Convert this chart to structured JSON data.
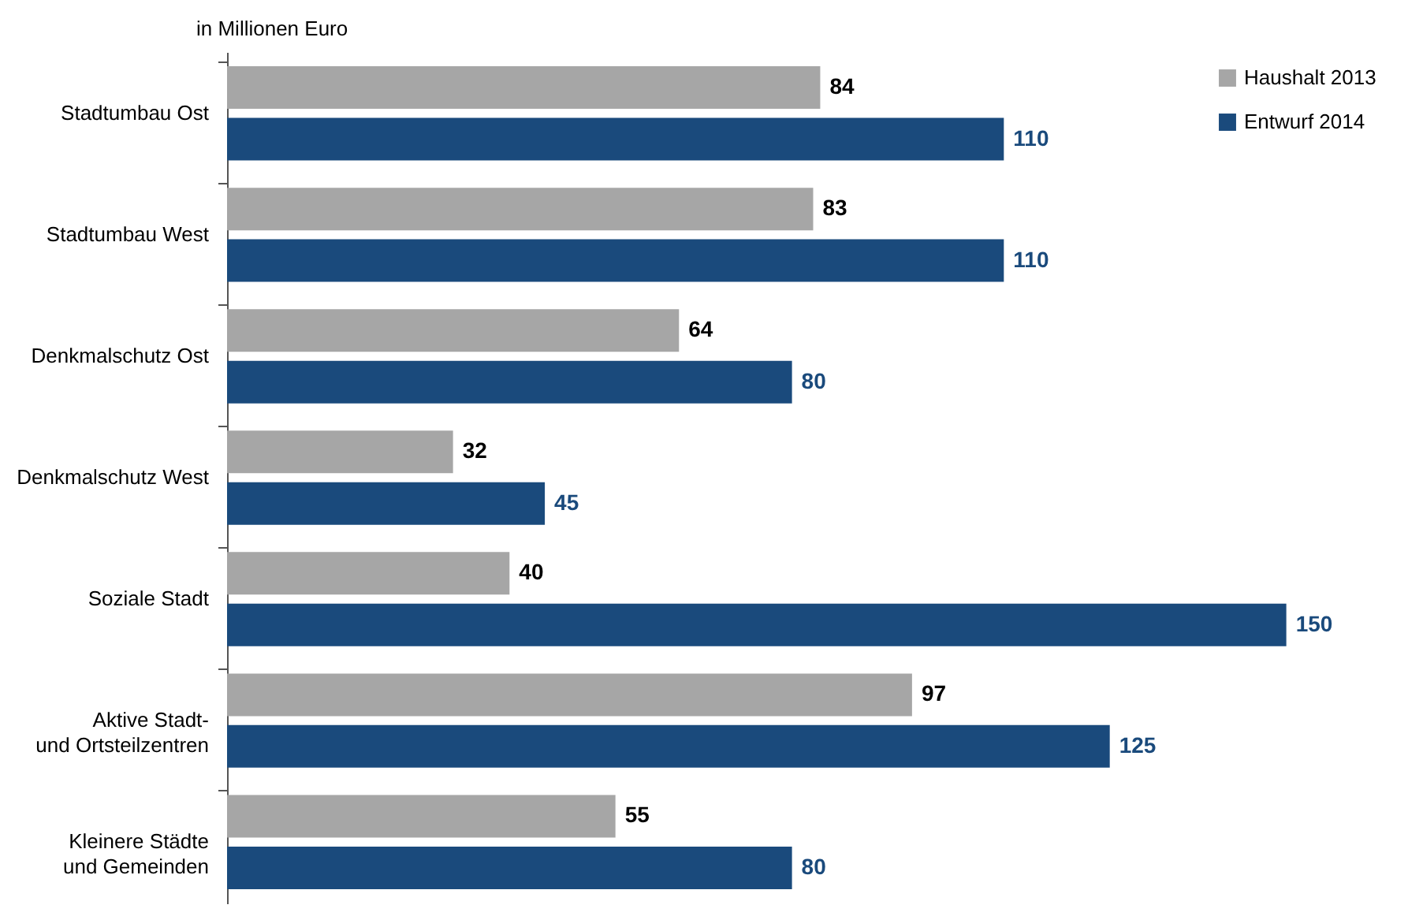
{
  "chart_data": {
    "type": "bar",
    "orientation": "horizontal",
    "xlabel": "in Millionen Euro",
    "categories": [
      "Stadtumbau Ost",
      "Stadtumbau West",
      "Denkmalschutz Ost",
      "Denkmalschutz West",
      "Soziale Stadt",
      "Aktive Stadt-\nund Ortsteilzentren",
      "Kleinere Städte\nund Gemeinden"
    ],
    "series": [
      {
        "name": "Haushalt 2013",
        "color": "#a6a6a6",
        "values": [
          84,
          83,
          64,
          32,
          40,
          97,
          55
        ]
      },
      {
        "name": "Entwurf 2014",
        "color": "#1a4a7c",
        "values": [
          110,
          110,
          80,
          45,
          150,
          125,
          80
        ]
      }
    ],
    "data_labels": true,
    "legend": "top right",
    "grid": false,
    "tick_labels": "y"
  }
}
